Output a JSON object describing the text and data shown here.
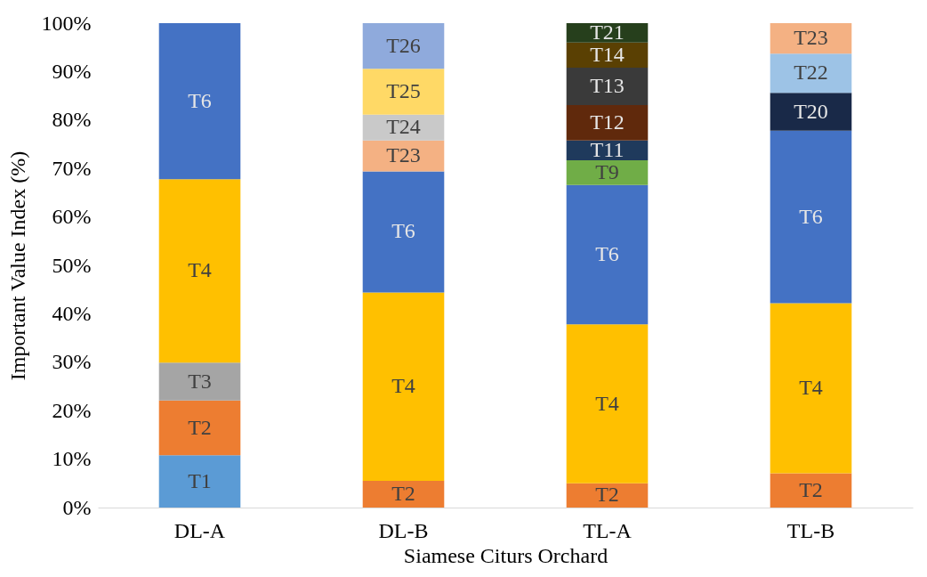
{
  "chart_data": {
    "type": "bar",
    "stacked": true,
    "xlabel": "Siamese Citurs Orchard",
    "ylabel": "Important Value Index (%)",
    "categories": [
      "DL-A",
      "DL-B",
      "TL-A",
      "TL-B"
    ],
    "ylim": [
      0,
      100
    ],
    "yticks": [
      {
        "value": 0,
        "label": "0%"
      },
      {
        "value": 10,
        "label": "10%"
      },
      {
        "value": 20,
        "label": "20%"
      },
      {
        "value": 30,
        "label": "30%"
      },
      {
        "value": 40,
        "label": "40%"
      },
      {
        "value": 50,
        "label": "50%"
      },
      {
        "value": 60,
        "label": "60%"
      },
      {
        "value": 70,
        "label": "70%"
      },
      {
        "value": 80,
        "label": "80%"
      },
      {
        "value": 90,
        "label": "90%"
      },
      {
        "value": 100,
        "label": "100%"
      }
    ],
    "series": [
      {
        "name": "T1",
        "color": "#5b9bd5",
        "values": [
          10.8,
          null,
          null,
          null
        ]
      },
      {
        "name": "T2",
        "color": "#ed7d31",
        "values": [
          11.3,
          5.5,
          5.0,
          7.1
        ]
      },
      {
        "name": "T3",
        "color": "#a5a5a5",
        "values": [
          7.8,
          null,
          null,
          null
        ]
      },
      {
        "name": "T4",
        "color": "#ffc000",
        "values": [
          37.9,
          38.9,
          32.8,
          35.1
        ]
      },
      {
        "name": "T6",
        "color": "#4472c4",
        "values": [
          32.2,
          25.0,
          28.8,
          35.6
        ]
      },
      {
        "name": "T9",
        "color": "#70ad47",
        "values": [
          null,
          null,
          5.1,
          null
        ]
      },
      {
        "name": "T11",
        "color": "#1f3a5c",
        "values": [
          null,
          null,
          4.1,
          null
        ]
      },
      {
        "name": "T12",
        "color": "#60290c",
        "values": [
          null,
          null,
          7.3,
          null
        ]
      },
      {
        "name": "T13",
        "color": "#3a3a3a",
        "values": [
          null,
          null,
          7.7,
          null
        ]
      },
      {
        "name": "T14",
        "color": "#5a4003",
        "values": [
          null,
          null,
          5.2,
          null
        ]
      },
      {
        "name": "T20",
        "color": "#192948",
        "values": [
          null,
          null,
          null,
          7.8
        ]
      },
      {
        "name": "T21",
        "color": "#263f1c",
        "values": [
          null,
          null,
          4.0,
          null
        ]
      },
      {
        "name": "T22",
        "color": "#9dc3e6",
        "values": [
          null,
          null,
          null,
          8.1
        ]
      },
      {
        "name": "T23",
        "color": "#f4b183",
        "values": [
          null,
          6.4,
          null,
          6.3
        ]
      },
      {
        "name": "T24",
        "color": "#c9c9c9",
        "values": [
          null,
          5.3,
          null,
          null
        ]
      },
      {
        "name": "T25",
        "color": "#ffd966",
        "values": [
          null,
          9.5,
          null,
          null
        ]
      },
      {
        "name": "T26",
        "color": "#8faadc",
        "values": [
          null,
          9.4,
          null,
          null
        ]
      }
    ]
  }
}
